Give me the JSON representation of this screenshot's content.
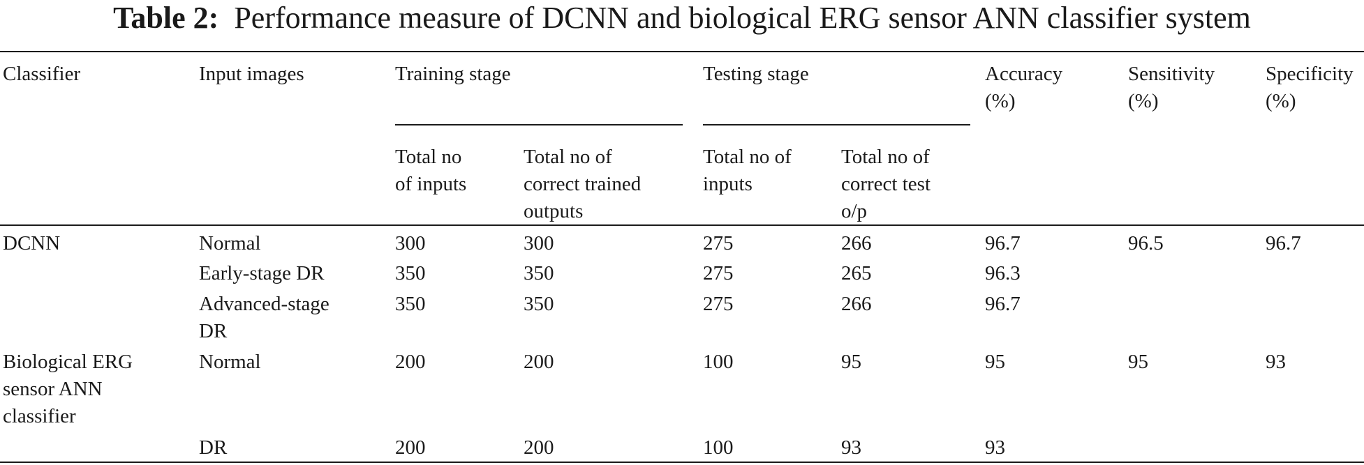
{
  "caption": {
    "label": "Table 2:",
    "text": "Performance measure of DCNN and biological ERG sensor ANN classifier system"
  },
  "headers": {
    "classifier": "Classifier",
    "input_images": "Input images",
    "training_stage": "Training stage",
    "testing_stage": "Testing stage",
    "accuracy": [
      "Accuracy",
      "(%)"
    ],
    "sensitivity": [
      "Sensitivity",
      "(%)"
    ],
    "specificity": [
      "Specificity",
      "(%)"
    ],
    "train_total": [
      "Total no",
      "of inputs"
    ],
    "train_correct": [
      "Total no of",
      "correct trained",
      "outputs"
    ],
    "test_total": [
      "Total no of",
      "inputs"
    ],
    "test_correct": [
      "Total no of",
      "correct test",
      "o/p"
    ]
  },
  "rows": [
    {
      "classifier": [
        "DCNN"
      ],
      "input": [
        "Normal"
      ],
      "train_total": "300",
      "train_correct": "300",
      "test_total": "275",
      "test_correct": "266",
      "accuracy": "96.7",
      "sensitivity": "96.5",
      "specificity": "96.7"
    },
    {
      "classifier": [],
      "input": [
        "Early-stage DR"
      ],
      "train_total": "350",
      "train_correct": "350",
      "test_total": "275",
      "test_correct": "265",
      "accuracy": "96.3",
      "sensitivity": "",
      "specificity": ""
    },
    {
      "classifier": [],
      "input": [
        "Advanced-stage",
        "DR"
      ],
      "train_total": "350",
      "train_correct": "350",
      "test_total": "275",
      "test_correct": "266",
      "accuracy": "96.7",
      "sensitivity": "",
      "specificity": ""
    },
    {
      "classifier": [
        "Biological ERG",
        "sensor ANN",
        "classifier"
      ],
      "input": [
        "Normal"
      ],
      "train_total": "200",
      "train_correct": "200",
      "test_total": "100",
      "test_correct": "95",
      "accuracy": "95",
      "sensitivity": "95",
      "specificity": "93"
    },
    {
      "classifier": [],
      "input": [
        "DR"
      ],
      "train_total": "200",
      "train_correct": "200",
      "test_total": "100",
      "test_correct": "93",
      "accuracy": "93",
      "sensitivity": "",
      "specificity": ""
    }
  ]
}
